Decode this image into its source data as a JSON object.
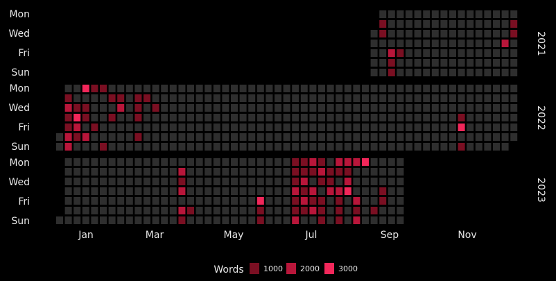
{
  "chart_data": {
    "type": "heatmap",
    "title": "",
    "day_labels": [
      "Mon",
      "Wed",
      "Fri",
      "Sun"
    ],
    "month_labels": [
      "Jan",
      "Mar",
      "May",
      "Jul",
      "Sep",
      "Nov"
    ],
    "legend": {
      "title": "Words",
      "items": [
        {
          "label": "1000",
          "color": "#7a0f22"
        },
        {
          "label": "2000",
          "color": "#b8163a"
        },
        {
          "label": "3000",
          "color": "#f2275a"
        }
      ]
    },
    "colors": {
      "empty": "#2e2e2e",
      "background": "#000000",
      "text": "#e6e6e6"
    },
    "panels": [
      {
        "year": "2021",
        "start_week": 36,
        "end_week": 52,
        "first_week_start_day": 2,
        "last_week_end_day": 6,
        "cells": [
          {
            "week": 37,
            "day": 1,
            "level": 1
          },
          {
            "week": 37,
            "day": 2,
            "level": 1
          },
          {
            "week": 38,
            "day": 4,
            "level": 2
          },
          {
            "week": 38,
            "day": 5,
            "level": 1
          },
          {
            "week": 38,
            "day": 6,
            "level": 1
          },
          {
            "week": 39,
            "day": 4,
            "level": 1
          },
          {
            "week": 51,
            "day": 3,
            "level": 2
          },
          {
            "week": 52,
            "day": 1,
            "level": 1
          },
          {
            "week": 52,
            "day": 2,
            "level": 1
          }
        ]
      },
      {
        "year": "2022",
        "start_week": 0,
        "end_week": 52,
        "first_week_start_day": 5,
        "last_week_end_day": 5,
        "cells": [
          {
            "week": 1,
            "day": 1,
            "level": 1
          },
          {
            "week": 1,
            "day": 2,
            "level": 2
          },
          {
            "week": 1,
            "day": 3,
            "level": 1
          },
          {
            "week": 1,
            "day": 4,
            "level": 1
          },
          {
            "week": 1,
            "day": 5,
            "level": 2
          },
          {
            "week": 1,
            "day": 6,
            "level": 2
          },
          {
            "week": 2,
            "day": 2,
            "level": 1
          },
          {
            "week": 2,
            "day": 3,
            "level": 3
          },
          {
            "week": 2,
            "day": 4,
            "level": 2
          },
          {
            "week": 2,
            "day": 5,
            "level": 1
          },
          {
            "week": 3,
            "day": 0,
            "level": 3
          },
          {
            "week": 3,
            "day": 2,
            "level": 1
          },
          {
            "week": 3,
            "day": 3,
            "level": 1
          },
          {
            "week": 3,
            "day": 5,
            "level": 2
          },
          {
            "week": 4,
            "day": 0,
            "level": 1
          },
          {
            "week": 4,
            "day": 4,
            "level": 1
          },
          {
            "week": 5,
            "day": 0,
            "level": 1
          },
          {
            "week": 5,
            "day": 6,
            "level": 1
          },
          {
            "week": 6,
            "day": 1,
            "level": 1
          },
          {
            "week": 6,
            "day": 3,
            "level": 1
          },
          {
            "week": 7,
            "day": 1,
            "level": 1
          },
          {
            "week": 7,
            "day": 2,
            "level": 2
          },
          {
            "week": 9,
            "day": 1,
            "level": 1
          },
          {
            "week": 9,
            "day": 2,
            "level": 1
          },
          {
            "week": 9,
            "day": 3,
            "level": 1
          },
          {
            "week": 9,
            "day": 5,
            "level": 1
          },
          {
            "week": 10,
            "day": 1,
            "level": 1
          },
          {
            "week": 11,
            "day": 2,
            "level": 1
          },
          {
            "week": 46,
            "day": 3,
            "level": 1
          },
          {
            "week": 46,
            "day": 4,
            "level": 3
          },
          {
            "week": 46,
            "day": 6,
            "level": 1
          }
        ]
      },
      {
        "year": "2023",
        "start_week": 0,
        "end_week": 39,
        "first_week_start_day": 6,
        "last_week_end_day": 6,
        "cells": [
          {
            "week": 14,
            "day": 1,
            "level": 2
          },
          {
            "week": 14,
            "day": 2,
            "level": 1
          },
          {
            "week": 14,
            "day": 3,
            "level": 2
          },
          {
            "week": 14,
            "day": 5,
            "level": 2
          },
          {
            "week": 14,
            "day": 6,
            "level": 1
          },
          {
            "week": 15,
            "day": 5,
            "level": 1
          },
          {
            "week": 23,
            "day": 4,
            "level": 3
          },
          {
            "week": 23,
            "day": 5,
            "level": 1
          },
          {
            "week": 23,
            "day": 6,
            "level": 1
          },
          {
            "week": 27,
            "day": 0,
            "level": 1
          },
          {
            "week": 27,
            "day": 1,
            "level": 1
          },
          {
            "week": 27,
            "day": 2,
            "level": 1
          },
          {
            "week": 27,
            "day": 3,
            "level": 2
          },
          {
            "week": 27,
            "day": 4,
            "level": 1
          },
          {
            "week": 27,
            "day": 5,
            "level": 1
          },
          {
            "week": 27,
            "day": 6,
            "level": 2
          },
          {
            "week": 28,
            "day": 0,
            "level": 1
          },
          {
            "week": 28,
            "day": 1,
            "level": 1
          },
          {
            "week": 28,
            "day": 2,
            "level": 2
          },
          {
            "week": 28,
            "day": 3,
            "level": 1
          },
          {
            "week": 28,
            "day": 4,
            "level": 2
          },
          {
            "week": 28,
            "day": 5,
            "level": 1
          },
          {
            "week": 29,
            "day": 0,
            "level": 2
          },
          {
            "week": 29,
            "day": 1,
            "level": 1
          },
          {
            "week": 29,
            "day": 3,
            "level": 2
          },
          {
            "week": 29,
            "day": 4,
            "level": 1
          },
          {
            "week": 29,
            "day": 5,
            "level": 2
          },
          {
            "week": 30,
            "day": 0,
            "level": 1
          },
          {
            "week": 30,
            "day": 1,
            "level": 2
          },
          {
            "week": 30,
            "day": 2,
            "level": 1
          },
          {
            "week": 30,
            "day": 4,
            "level": 1
          },
          {
            "week": 30,
            "day": 5,
            "level": 1
          },
          {
            "week": 30,
            "day": 6,
            "level": 1
          },
          {
            "week": 31,
            "day": 1,
            "level": 1
          },
          {
            "week": 31,
            "day": 2,
            "level": 1
          },
          {
            "week": 31,
            "day": 3,
            "level": 2
          },
          {
            "week": 32,
            "day": 0,
            "level": 2
          },
          {
            "week": 32,
            "day": 1,
            "level": 1
          },
          {
            "week": 32,
            "day": 3,
            "level": 2
          },
          {
            "week": 32,
            "day": 4,
            "level": 1
          },
          {
            "week": 32,
            "day": 5,
            "level": 1
          },
          {
            "week": 32,
            "day": 6,
            "level": 1
          },
          {
            "week": 33,
            "day": 0,
            "level": 2
          },
          {
            "week": 33,
            "day": 1,
            "level": 1
          },
          {
            "week": 33,
            "day": 2,
            "level": 2
          },
          {
            "week": 33,
            "day": 3,
            "level": 3
          },
          {
            "week": 34,
            "day": 0,
            "level": 2
          },
          {
            "week": 34,
            "day": 4,
            "level": 2
          },
          {
            "week": 34,
            "day": 5,
            "level": 1
          },
          {
            "week": 34,
            "day": 6,
            "level": 2
          },
          {
            "week": 35,
            "day": 0,
            "level": 3
          },
          {
            "week": 36,
            "day": 5,
            "level": 1
          },
          {
            "week": 37,
            "day": 3,
            "level": 1
          },
          {
            "week": 37,
            "day": 4,
            "level": 1
          }
        ]
      }
    ]
  }
}
